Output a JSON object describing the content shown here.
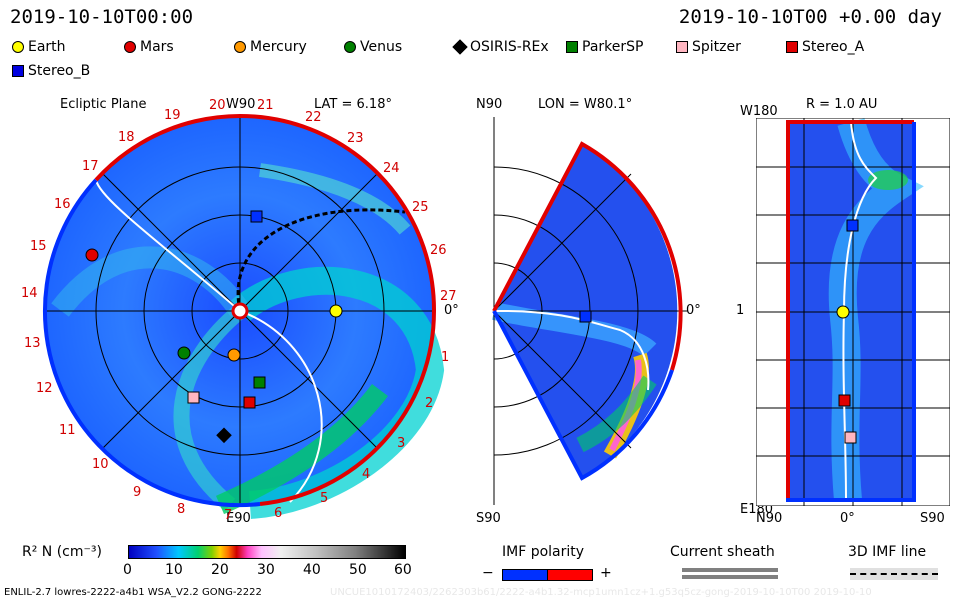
{
  "header": {
    "left_time": "2019-10-10T00:00",
    "right_time": "2019-10-10T00 +0.00 day"
  },
  "legend": {
    "items": [
      {
        "name": "Earth",
        "color": "#ffff00",
        "shape": "circle"
      },
      {
        "name": "Mars",
        "color": "#e00000",
        "shape": "circle"
      },
      {
        "name": "Mercury",
        "color": "#ff9900",
        "shape": "circle"
      },
      {
        "name": "Venus",
        "color": "#008000",
        "shape": "circle"
      },
      {
        "name": "OSIRIS-REx",
        "color": "#000000",
        "shape": "diamond"
      },
      {
        "name": "ParkerSP",
        "color": "#008000",
        "shape": "square"
      },
      {
        "name": "Spitzer",
        "color": "#ffb6c1",
        "shape": "square"
      },
      {
        "name": "Stereo_A",
        "color": "#e00000",
        "shape": "square"
      },
      {
        "name": "Stereo_B",
        "color": "#0000e0",
        "shape": "square"
      }
    ]
  },
  "panel_left": {
    "title": "Ecliptic Plane",
    "top_label": "W90",
    "bottom_label": "E90",
    "right_label": "0°",
    "lat_label": "LAT = 6.18°",
    "ticks": [
      "19",
      "20",
      "21",
      "22",
      "23",
      "24",
      "25",
      "26",
      "27",
      "1",
      "2",
      "3",
      "4",
      "5",
      "6",
      "7",
      "8",
      "9",
      "10",
      "11",
      "12",
      "13",
      "14",
      "15",
      "16",
      "17",
      "18"
    ]
  },
  "panel_middle": {
    "top_label": "N90",
    "bottom_label": "S90",
    "right_label": "0°",
    "lon_label": "LON = W80.1°"
  },
  "panel_right": {
    "title": "R = 1.0 AU",
    "top_left": "W180",
    "mid_left": "1",
    "bottom_left": "E180",
    "bottom_n": "N90",
    "bottom_zero": "0°",
    "bottom_s": "S90"
  },
  "colorbar": {
    "label": "R² N (cm⁻³)",
    "ticks": [
      "0",
      "10",
      "20",
      "30",
      "40",
      "50",
      "60"
    ]
  },
  "imf": {
    "polarity_label": "IMF polarity",
    "minus": "−",
    "plus": "+",
    "sheath_label": "Current sheath",
    "line_label": "3D IMF line"
  },
  "footer": {
    "model": "ENLIL-2.7 lowres-2222-a4b1 WSA_V2.2 GONG-2222",
    "run_id": "UNCUE1010172403/2262303b61/2222-a4b1.32-mcp1umn1cz+1.g53q5cz-gong-2019-10-10T00    2019-10-10"
  }
}
